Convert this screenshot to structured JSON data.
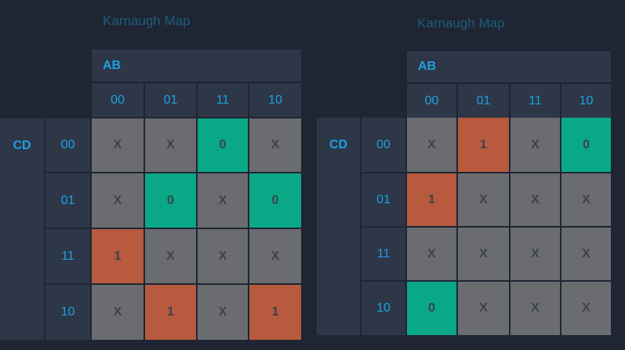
{
  "maps": [
    {
      "title": "Karnaugh Map",
      "row_var": "CD",
      "col_var": "AB",
      "col_labels": [
        "00",
        "01",
        "11",
        "10"
      ],
      "row_labels": [
        "00",
        "01",
        "11",
        "10"
      ],
      "cells": [
        [
          "X",
          "X",
          "0",
          "X"
        ],
        [
          "X",
          "0",
          "X",
          "0"
        ],
        [
          "1",
          "X",
          "X",
          "X"
        ],
        [
          "X",
          "1",
          "X",
          "1"
        ]
      ]
    },
    {
      "title": "Karnaugh Map",
      "row_var": "CD",
      "col_var": "AB",
      "col_labels": [
        "00",
        "01",
        "11",
        "10"
      ],
      "row_labels": [
        "00",
        "01",
        "11",
        "10"
      ],
      "cells": [
        [
          "X",
          "1",
          "X",
          "0"
        ],
        [
          "1",
          "X",
          "X",
          "X"
        ],
        [
          "X",
          "X",
          "X",
          "X"
        ],
        [
          "0",
          "X",
          "X",
          "X"
        ]
      ]
    }
  ],
  "colors": {
    "background": "#1f2533",
    "header": "#2d3748",
    "label": "#1ea0e0",
    "cell_x": "#6a6c70",
    "cell_zero": "#09a886",
    "cell_one": "#b75a3e"
  }
}
